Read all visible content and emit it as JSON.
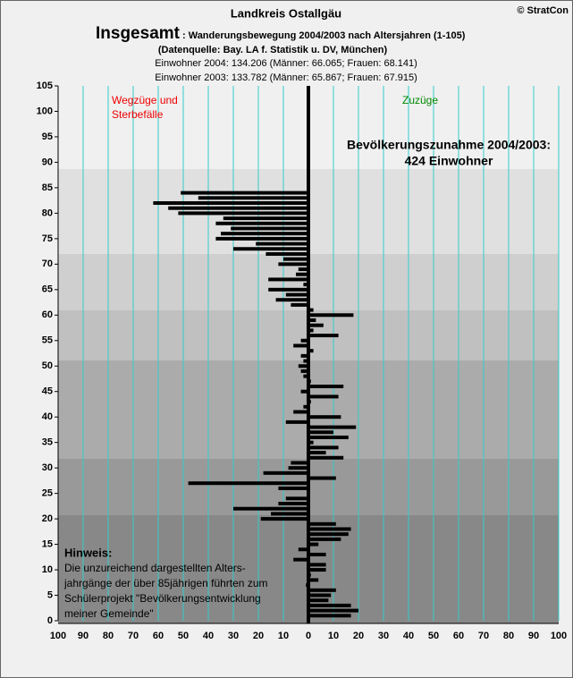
{
  "chart_data": {
    "type": "hbar",
    "title": "Landkreis Ostallgäu",
    "copyright": "© StratCon",
    "heading": "Insgesamt",
    "subtitle": ": Wanderungsbewegung 2004/2003 nach Altersjahren (1-105)",
    "source": "(Datenquelle: Bay. LA f. Statistik u. DV, München)",
    "info": [
      "Einwohner 2004: 134.206  (Männer: 66.065; Frauen: 68.141)",
      "Einwohner 2003: 133.782  (Männer: 65.867; Frauen: 67.915)"
    ],
    "left_label": [
      "Wegzüge und",
      "Sterbefälle"
    ],
    "right_label": "Zuzüge",
    "summary": [
      "Bevölkerungszunahme 2004/2003:",
      "424 Einwohner"
    ],
    "note": {
      "heading": "Hinweis:",
      "lines": [
        "Die unzureichend dargestellten Alters-",
        "jahrgänge der über 85jährigen führten zum",
        "Schülerprojekt \"Bevölkerungsentwicklung",
        "meiner Gemeinde\""
      ]
    },
    "categories": [
      1,
      2,
      3,
      4,
      5,
      6,
      7,
      8,
      9,
      10,
      11,
      12,
      13,
      14,
      15,
      16,
      17,
      18,
      19,
      20,
      21,
      22,
      23,
      24,
      25,
      26,
      27,
      28,
      29,
      30,
      31,
      32,
      33,
      34,
      35,
      36,
      37,
      38,
      39,
      40,
      41,
      42,
      43,
      44,
      45,
      46,
      47,
      48,
      49,
      50,
      51,
      52,
      53,
      54,
      55,
      56,
      57,
      58,
      59,
      60,
      61,
      62,
      63,
      64,
      65,
      66,
      67,
      68,
      69,
      70,
      71,
      72,
      73,
      74,
      75,
      76,
      77,
      78,
      79,
      80,
      81,
      82,
      83,
      84,
      85,
      86,
      87,
      88,
      89,
      90,
      91,
      92,
      93,
      94,
      95,
      96,
      97,
      98,
      99,
      100,
      101,
      102,
      103,
      104,
      105
    ],
    "values": [
      17,
      20,
      17,
      8,
      9,
      11,
      -1,
      4,
      1,
      7,
      7,
      -6,
      7,
      -4,
      4,
      13,
      16,
      17,
      11,
      -19,
      -15,
      -30,
      -12,
      -9,
      0,
      -12,
      -48,
      11,
      -18,
      -8,
      -7,
      14,
      7,
      12,
      2,
      16,
      10,
      19,
      -9,
      13,
      -6,
      -2,
      1,
      12,
      -3,
      14,
      1,
      -2,
      -3,
      -4,
      -2,
      -3,
      2,
      -6,
      -3,
      12,
      2,
      6,
      3,
      18,
      2,
      -7,
      -13,
      -9,
      -16,
      -2,
      -16,
      -5,
      -4,
      -12,
      -10,
      -17,
      -30,
      -21,
      -37,
      -35,
      -31,
      -37,
      -34,
      -52,
      -56,
      -62,
      -44,
      -51,
      0,
      0,
      0,
      0,
      0,
      0,
      0,
      0,
      0,
      0,
      0,
      0,
      0,
      0,
      0,
      0,
      0,
      0,
      0,
      0,
      0
    ],
    "color": "#000000",
    "grid_color": "#33cccc",
    "xlim": [
      -100,
      100
    ],
    "xticks": [
      {
        "value": -100,
        "label": "100"
      },
      {
        "value": -90,
        "label": "90"
      },
      {
        "value": -80,
        "label": "80"
      },
      {
        "value": -70,
        "label": "70"
      },
      {
        "value": -60,
        "label": "60"
      },
      {
        "value": -50,
        "label": "50"
      },
      {
        "value": -40,
        "label": "40"
      },
      {
        "value": -30,
        "label": "30"
      },
      {
        "value": -20,
        "label": "20"
      },
      {
        "value": -10,
        "label": "10"
      },
      0,
      10,
      20,
      30,
      40,
      50,
      60,
      70,
      80,
      90,
      100
    ],
    "ylim": [
      0,
      105
    ],
    "yticks": [
      0,
      5,
      10,
      15,
      20,
      25,
      30,
      35,
      40,
      45,
      50,
      55,
      60,
      65,
      70,
      75,
      80,
      85,
      90,
      95,
      100,
      105
    ],
    "grid": true
  }
}
